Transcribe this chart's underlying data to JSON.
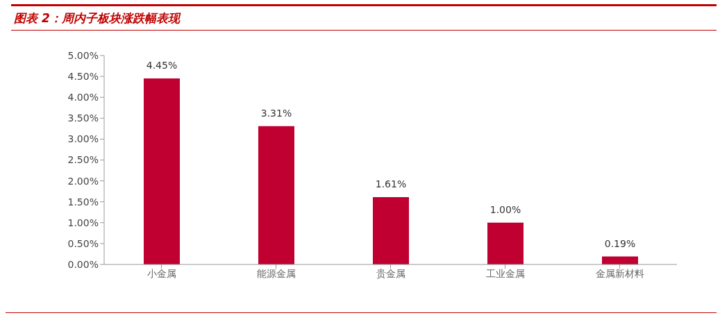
{
  "chart_data": {
    "type": "bar",
    "title": "图表 2：周内子板块涨跌幅表现",
    "categories": [
      "小金属",
      "能源金属",
      "贵金属",
      "工业金属",
      "金属新材料"
    ],
    "values": [
      4.45,
      3.31,
      1.61,
      1.0,
      0.19
    ],
    "value_labels": [
      "4.45%",
      "3.31%",
      "1.61%",
      "1.00%",
      "0.19%"
    ],
    "color": "#c00030",
    "ylim": [
      0,
      5
    ],
    "yticks": [
      {
        "value": 0,
        "label": "0.00%"
      },
      {
        "value": 0.5,
        "label": "0.50%"
      },
      {
        "value": 1,
        "label": "1.00%"
      },
      {
        "value": 1.5,
        "label": "1.50%"
      },
      {
        "value": 2,
        "label": "2.00%"
      },
      {
        "value": 2.5,
        "label": "2.50%"
      },
      {
        "value": 3,
        "label": "3.00%"
      },
      {
        "value": 3.5,
        "label": "3.50%"
      },
      {
        "value": 4,
        "label": "4.00%"
      },
      {
        "value": 4.5,
        "label": "4.50%"
      },
      {
        "value": 5,
        "label": "5.00%"
      }
    ],
    "grid": false,
    "legend": false
  }
}
